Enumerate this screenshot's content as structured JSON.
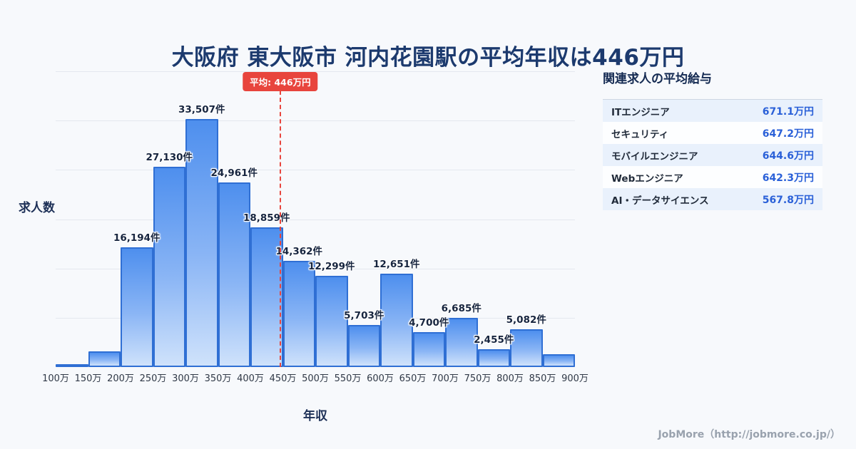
{
  "title": "大阪府 東大阪市 河内花園駅の平均年収は446万円",
  "chart_data": {
    "type": "bar",
    "title": "大阪府 東大阪市 河内花園駅の平均年収は446万円",
    "xlabel": "年収",
    "ylabel": "求人数",
    "x_unit": "万円",
    "bin_edges": [
      100,
      150,
      200,
      250,
      300,
      350,
      400,
      450,
      500,
      550,
      600,
      650,
      700,
      750,
      800,
      850,
      900
    ],
    "tick_labels": [
      "100万",
      "150万",
      "200万",
      "250万",
      "300万",
      "350万",
      "400万",
      "450万",
      "500万",
      "550万",
      "600万",
      "650万",
      "700万",
      "750万",
      "800万",
      "850万",
      "900万"
    ],
    "values": [
      300,
      2100,
      16194,
      27130,
      33507,
      24961,
      18859,
      14362,
      12299,
      5703,
      12651,
      4700,
      6685,
      2455,
      5082,
      1700
    ],
    "bar_labels": [
      "",
      "",
      "16,194件",
      "27,130件",
      "33,507件",
      "24,961件",
      "18,859件",
      "14,362件",
      "12,299件",
      "5,703件",
      "12,651件",
      "4,700件",
      "6,685件",
      "2,455件",
      "5,082件",
      ""
    ],
    "estimated_value_indices": [
      0,
      1,
      15
    ],
    "ylim": [
      0,
      40000
    ],
    "grid": true,
    "legend": false,
    "average": {
      "value": 446,
      "label": "平均: 446万円"
    }
  },
  "side_panel": {
    "title": "関連求人の平均給与",
    "rows": [
      {
        "name": "ITエンジニア",
        "salary": "671.1万円"
      },
      {
        "name": "セキュリティ",
        "salary": "647.2万円"
      },
      {
        "name": "モバイルエンジニア",
        "salary": "644.6万円"
      },
      {
        "name": "Webエンジニア",
        "salary": "642.3万円"
      },
      {
        "name": "AI・データサイエンス",
        "salary": "567.8万円"
      }
    ]
  },
  "footer": {
    "credit": "JobMore（http://jobmore.co.jp/）"
  },
  "colors": {
    "background": "#f7f9fc",
    "title_navy": "#1c3a6e",
    "bar_border": "#2f6fd4",
    "bar_fill_top": "#4e8fee",
    "bar_fill_bottom": "#cfe2fb",
    "average_red": "#e8453d",
    "salary_blue": "#2a60d8",
    "row_alt_blue": "#e9f1fc"
  }
}
